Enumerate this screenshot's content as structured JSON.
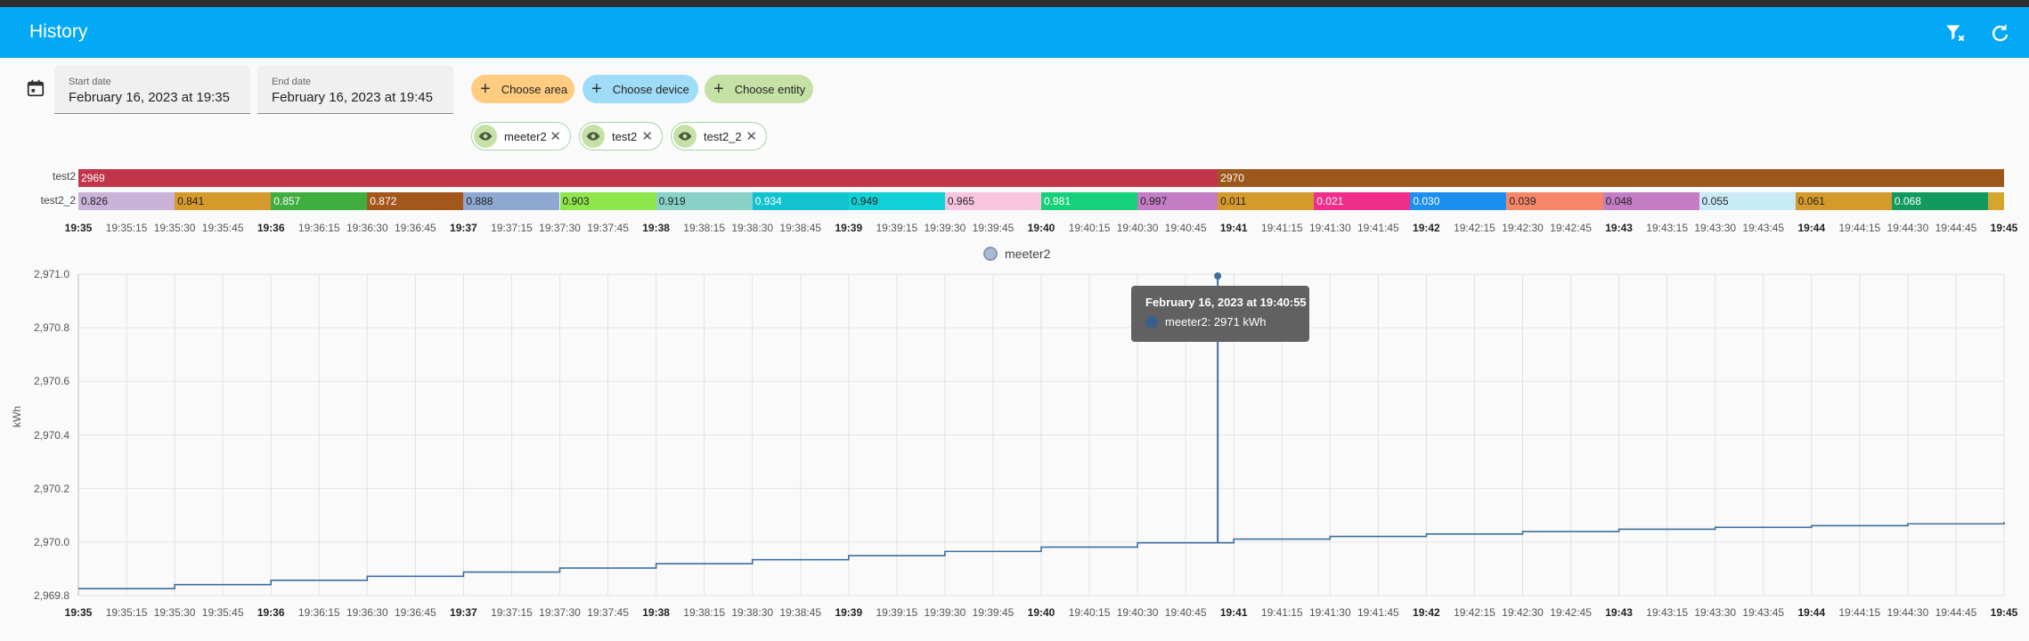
{
  "app": {
    "title": "History"
  },
  "toolbar": {
    "clear_icon": "filter-remove-icon",
    "refresh_icon": "refresh-icon"
  },
  "dates": {
    "start_label": "Start date",
    "start_value": "February 16, 2023 at 19:35",
    "end_label": "End date",
    "end_value": "February 16, 2023 at 19:45"
  },
  "chips": {
    "area": "Choose area",
    "device": "Choose device",
    "entity": "Choose entity"
  },
  "entities": [
    "meeter2",
    "test2",
    "test2_2"
  ],
  "timeline": {
    "row1_label": "test2",
    "row2_label": "test2_2",
    "test2_segments": [
      {
        "label": "2969",
        "color": "#c2344a"
      },
      {
        "label": "2970",
        "color": "#9c571a"
      }
    ],
    "test2_2_segments": [
      {
        "label": "0.826",
        "color": "#c9b3d9"
      },
      {
        "label": "0.841",
        "color": "#d49a2b"
      },
      {
        "label": "0.857",
        "color": "#3fae3f"
      },
      {
        "label": "0.872",
        "color": "#a3571b"
      },
      {
        "label": "0.888",
        "color": "#8fa8d1"
      },
      {
        "label": "0.903",
        "color": "#8ee64c"
      },
      {
        "label": "0.919",
        "color": "#88d1c6"
      },
      {
        "label": "0.934",
        "color": "#12c2cf"
      },
      {
        "label": "0.949",
        "color": "#12d0d6"
      },
      {
        "label": "0.965",
        "color": "#f8c4de"
      },
      {
        "label": "0.981",
        "color": "#17d07a"
      },
      {
        "label": "0.997",
        "color": "#c47dc4"
      },
      {
        "label": "0.011",
        "color": "#d49a2b"
      },
      {
        "label": "0.021",
        "color": "#ef2d8a"
      },
      {
        "label": "0.030",
        "color": "#1d8fef"
      },
      {
        "label": "0.039",
        "color": "#f8876a"
      },
      {
        "label": "0.048",
        "color": "#c47dc4"
      },
      {
        "label": "0.055",
        "color": "#c9eaf7"
      },
      {
        "label": "0.061",
        "color": "#d49a2b"
      },
      {
        "label": "0.068",
        "color": "#129a5e"
      },
      {
        "label": "",
        "color": "#d4a62b"
      }
    ]
  },
  "time_ticks": [
    "19:35",
    "19:35:15",
    "19:35:30",
    "19:35:45",
    "19:36",
    "19:36:15",
    "19:36:30",
    "19:36:45",
    "19:37",
    "19:37:15",
    "19:37:30",
    "19:37:45",
    "19:38",
    "19:38:15",
    "19:38:30",
    "19:38:45",
    "19:39",
    "19:39:15",
    "19:39:30",
    "19:39:45",
    "19:40",
    "19:40:15",
    "19:40:30",
    "19:40:45",
    "19:41",
    "19:41:15",
    "19:41:30",
    "19:41:45",
    "19:42",
    "19:42:15",
    "19:42:30",
    "19:42:45",
    "19:43",
    "19:43:15",
    "19:43:30",
    "19:43:45",
    "19:44",
    "19:44:15",
    "19:44:30",
    "19:44:45",
    "19:45"
  ],
  "chart_data": {
    "type": "line",
    "title": "",
    "legend": [
      "meeter2"
    ],
    "ylabel": "kWh",
    "ylim": [
      2969.8,
      2971.0
    ],
    "yticks": [
      "2,971.0",
      "2,970.8",
      "2,970.6",
      "2,970.4",
      "2,970.2",
      "2,970.0",
      "2,969.8"
    ],
    "xlim_seconds": [
      0,
      600
    ],
    "series": [
      {
        "name": "meeter2",
        "step_values": [
          2969.826,
          2969.841,
          2969.857,
          2969.872,
          2969.888,
          2969.903,
          2969.919,
          2969.934,
          2969.949,
          2969.965,
          2969.981,
          2969.997,
          2970.011,
          2970.021,
          2970.03,
          2970.039,
          2970.048,
          2970.055,
          2970.061,
          2970.068,
          2970.075
        ],
        "spike": {
          "t_seconds": 355,
          "value": 2971
        }
      }
    ],
    "tooltip": {
      "title": "February 16, 2023 at 19:40:55",
      "text": "meeter2: 2971 kWh"
    }
  }
}
